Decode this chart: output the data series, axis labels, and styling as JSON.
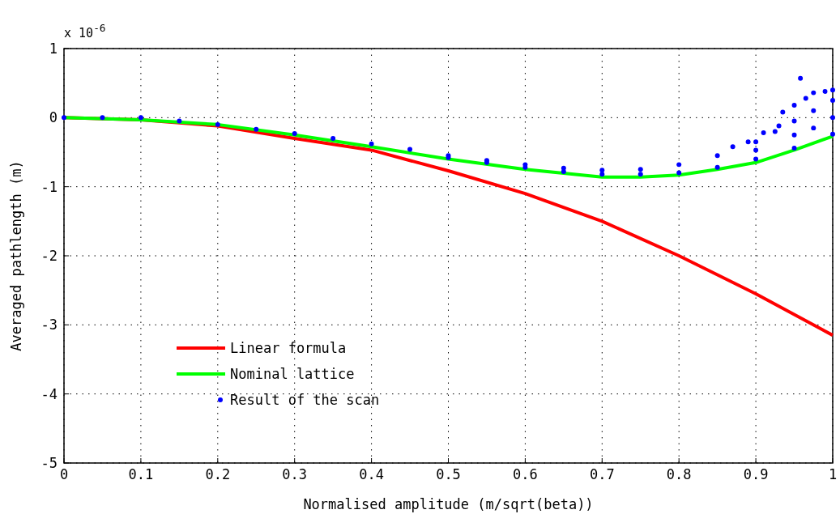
{
  "chart_data": {
    "type": "line",
    "xlabel": "Normalised amplitude (m/sqrt(beta))",
    "ylabel": "Averaged pathlength (m)",
    "annotations": [
      "x 10$^{-6}$"
    ],
    "xlim": [
      0,
      1
    ],
    "ylim": [
      -5,
      1
    ],
    "xticks": [
      0,
      0.1,
      0.2,
      0.3,
      0.4,
      0.5,
      0.6,
      0.7,
      0.8,
      0.9,
      1
    ],
    "yticks": [
      -5,
      -4,
      -3,
      -2,
      -1,
      0,
      1
    ],
    "grid": true,
    "legend": "bottom left",
    "series": [
      {
        "name": "Linear formula",
        "color": "#ff0000",
        "x": [
          0,
          0.1,
          0.2,
          0.3,
          0.4,
          0.5,
          0.6,
          0.7,
          0.8,
          0.9,
          1
        ],
        "values": [
          0,
          -0.03,
          -0.12,
          -0.3,
          -0.47,
          -0.77,
          -1.1,
          -1.5,
          -2.0,
          -2.55,
          -3.15
        ]
      },
      {
        "name": "Nominal lattice",
        "color": "#00ff00",
        "x": [
          0,
          0.1,
          0.2,
          0.3,
          0.4,
          0.5,
          0.6,
          0.7,
          0.75,
          0.8,
          0.85,
          0.9,
          0.95,
          1
        ],
        "values": [
          0,
          -0.03,
          -0.1,
          -0.25,
          -0.42,
          -0.6,
          -0.75,
          -0.86,
          -0.86,
          -0.83,
          -0.75,
          -0.65,
          -0.47,
          -0.27
        ]
      },
      {
        "name": "Result of the scan",
        "type": "scatter",
        "color": "#0000ff",
        "marker": "circle",
        "x": [
          0,
          0.05,
          0.1,
          0.15,
          0.2,
          0.25,
          0.3,
          0.35,
          0.4,
          0.45,
          0.5,
          0.55,
          0.6,
          0.65,
          0.7,
          0.75,
          0.8,
          0.85,
          0.9,
          0.925,
          0.95,
          0.975,
          1,
          0.5,
          0.55,
          0.6,
          0.65,
          0.7,
          0.75,
          0.8,
          0.85,
          0.9,
          0.95,
          1,
          0.9,
          0.95,
          0.975,
          1,
          0.87,
          0.89,
          0.91,
          0.93,
          0.935,
          0.95,
          0.965,
          0.975,
          0.99,
          1,
          0.958
        ],
        "values": [
          0,
          0,
          0,
          -0.05,
          -0.1,
          -0.17,
          -0.23,
          -0.3,
          -0.38,
          -0.46,
          -0.55,
          -0.62,
          -0.68,
          -0.73,
          -0.76,
          -0.75,
          -0.68,
          -0.55,
          -0.35,
          -0.2,
          -0.05,
          0.1,
          0.25,
          -0.58,
          -0.65,
          -0.72,
          -0.78,
          -0.82,
          -0.82,
          -0.8,
          -0.72,
          -0.6,
          -0.44,
          -0.24,
          -0.47,
          -0.25,
          -0.15,
          0,
          -0.42,
          -0.35,
          -0.22,
          -0.12,
          0.08,
          0.18,
          0.28,
          0.36,
          0.38,
          0.4,
          0.57
        ]
      }
    ]
  }
}
